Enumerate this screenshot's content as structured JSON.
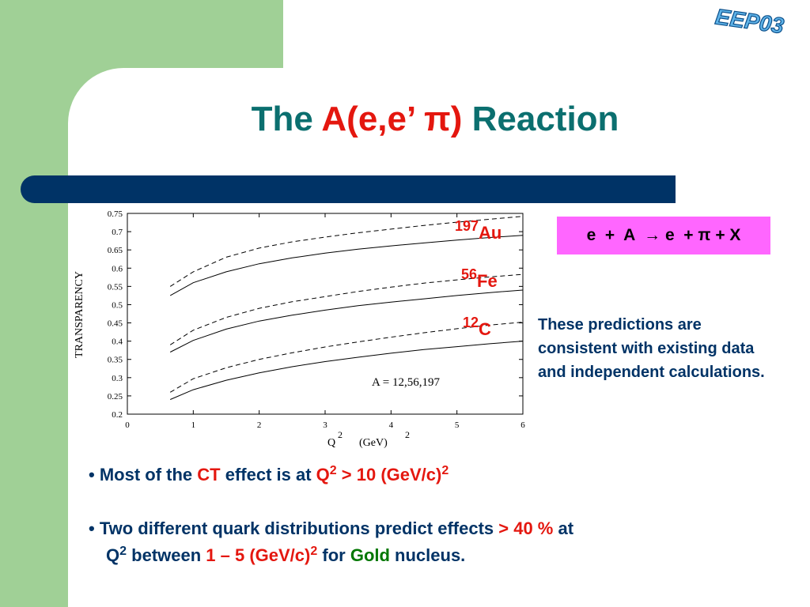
{
  "logo": {
    "text": "EEP03"
  },
  "title": {
    "prefix": "The ",
    "highlight": "A(e,e’ π)",
    "suffix": " Reaction"
  },
  "reaction": {
    "text": "e  +  A  → e  + π + X"
  },
  "isotopes": [
    {
      "mass": "197",
      "symbol": "Au"
    },
    {
      "mass": "56",
      "symbol": "Fe"
    },
    {
      "mass": "12",
      "symbol": "C"
    }
  ],
  "note": "These predictions are consistent with existing data and independent calculations.",
  "bullets": {
    "b1": {
      "bullet": "• ",
      "t1": "Most of the ",
      "t2": "CT",
      "t3": " effect is at ",
      "t4": "Q",
      "sup1": "2",
      "t5": " > 10 (GeV/c)",
      "sup2": "2"
    },
    "b2": {
      "bullet": "• ",
      "t1": "Two different quark distributions predict effects ",
      "t2": "> 40 %",
      "t3": " at"
    },
    "b3": {
      "t1": "Q",
      "sup1": "2",
      "t2": " between ",
      "t3": "1 – 5 (GeV/c)",
      "sup2": "2",
      "t4": " for ",
      "t5": "Gold",
      "t6": " nucleus."
    }
  },
  "chart_data": {
    "type": "line",
    "ylabel": "TRANSPARENCY",
    "xlabel": "Q",
    "xlabel_sup": "2",
    "xunit": "(GeV)",
    "xunit_sup": "2",
    "annotation": "A = 12,56,197",
    "xlim": [
      0,
      6
    ],
    "ylim": [
      0.2,
      0.75
    ],
    "xticks": [
      0,
      1,
      2,
      3,
      4,
      5,
      6
    ],
    "yticks": [
      0.2,
      0.25,
      0.3,
      0.35,
      0.4,
      0.45,
      0.5,
      0.55,
      0.6,
      0.65,
      0.7,
      0.75
    ],
    "x": [
      0.65,
      1,
      1.5,
      2,
      2.5,
      3,
      3.5,
      4,
      4.5,
      5,
      5.5,
      6
    ],
    "series": [
      {
        "style": "dashed",
        "values": [
          0.55,
          0.59,
          0.63,
          0.655,
          0.672,
          0.685,
          0.697,
          0.707,
          0.717,
          0.726,
          0.734,
          0.742
        ]
      },
      {
        "style": "solid",
        "values": [
          0.525,
          0.56,
          0.59,
          0.612,
          0.628,
          0.641,
          0.652,
          0.661,
          0.669,
          0.677,
          0.684,
          0.69
        ]
      },
      {
        "style": "dashed",
        "values": [
          0.39,
          0.43,
          0.465,
          0.49,
          0.508,
          0.522,
          0.536,
          0.548,
          0.559,
          0.568,
          0.576,
          0.583
        ]
      },
      {
        "style": "solid",
        "values": [
          0.37,
          0.402,
          0.433,
          0.455,
          0.471,
          0.485,
          0.497,
          0.507,
          0.516,
          0.525,
          0.533,
          0.54
        ]
      },
      {
        "style": "dashed",
        "values": [
          0.26,
          0.297,
          0.327,
          0.35,
          0.368,
          0.384,
          0.398,
          0.411,
          0.423,
          0.434,
          0.444,
          0.452
        ]
      },
      {
        "style": "solid",
        "values": [
          0.24,
          0.267,
          0.293,
          0.313,
          0.33,
          0.344,
          0.356,
          0.367,
          0.377,
          0.385,
          0.393,
          0.4
        ]
      }
    ],
    "colors": {
      "line": "#000000"
    }
  }
}
